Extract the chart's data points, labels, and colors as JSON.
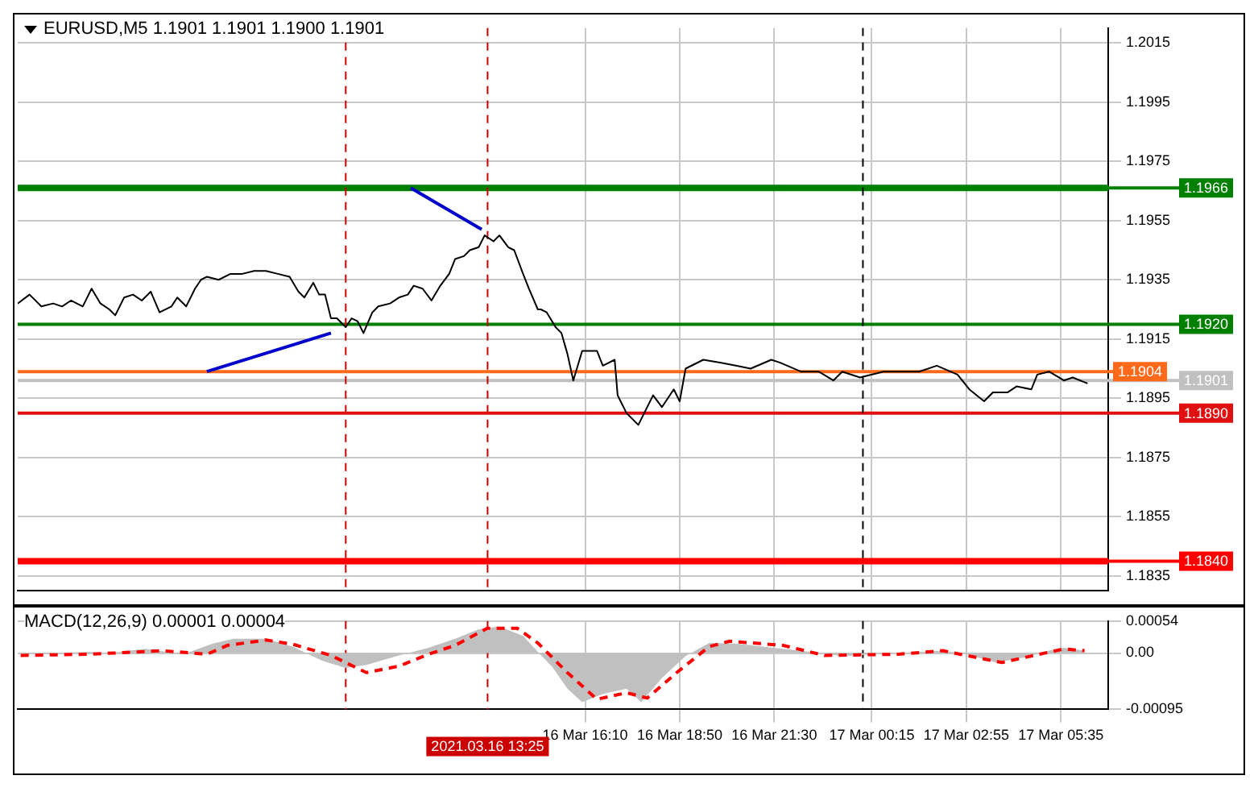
{
  "chart_data": [
    {
      "type": "line",
      "title": "EURUSD,M5  1.1901 1.1901 1.1900 1.1901",
      "xlim": [
        "2021-03-16T00:10",
        "2021-03-17T06:55"
      ],
      "xticks": [
        {
          "value": "2021-03-16T16:10",
          "label": null
        },
        {
          "value": "2021-03-16T18:50",
          "label": null
        },
        {
          "value": "2021-03-16T21:30",
          "label": null
        },
        {
          "value": "2021-03-17T00:15",
          "label": null
        },
        {
          "value": "2021-03-17T02:55",
          "label": null
        },
        {
          "value": "2021-03-17T05:35",
          "label": null
        }
      ],
      "ylim": [
        1.183,
        1.202
      ],
      "yticks": [
        1.1835,
        1.1855,
        1.1875,
        1.1895,
        1.1915,
        1.1935,
        1.1955,
        1.1975,
        1.1995,
        1.2015
      ],
      "tick_labels": "y",
      "grid": true,
      "legend": false,
      "marker": "none",
      "series": [
        {
          "color": "#000000",
          "x": [
            "2021-03-16T00:10",
            "2021-03-16T00:30",
            "2021-03-16T00:50",
            "2021-03-16T01:10",
            "2021-03-16T01:25",
            "2021-03-16T01:40",
            "2021-03-16T02:00",
            "2021-03-16T02:15",
            "2021-03-16T02:30",
            "2021-03-16T02:45",
            "2021-03-16T02:55",
            "2021-03-16T03:10",
            "2021-03-16T03:25",
            "2021-03-16T03:40",
            "2021-03-16T03:55",
            "2021-03-16T04:10",
            "2021-03-16T04:30",
            "2021-03-16T04:40",
            "2021-03-16T04:55",
            "2021-03-16T05:10",
            "2021-03-16T05:20",
            "2021-03-16T05:30",
            "2021-03-16T05:50",
            "2021-03-16T06:10",
            "2021-03-16T06:30",
            "2021-03-16T06:50",
            "2021-03-16T07:10",
            "2021-03-16T07:30",
            "2021-03-16T07:50",
            "2021-03-16T08:05",
            "2021-03-16T08:15",
            "2021-03-16T08:30",
            "2021-03-16T08:40",
            "2021-03-16T08:50",
            "2021-03-16T09:00",
            "2021-03-16T09:10",
            "2021-03-16T09:25",
            "2021-03-16T09:35",
            "2021-03-16T09:45",
            "2021-03-16T09:55",
            "2021-03-16T10:10",
            "2021-03-16T10:20",
            "2021-03-16T10:40",
            "2021-03-16T10:55",
            "2021-03-16T11:10",
            "2021-03-16T11:20",
            "2021-03-16T11:35",
            "2021-03-16T11:50",
            "2021-03-16T12:05",
            "2021-03-16T12:20",
            "2021-03-16T12:30",
            "2021-03-16T12:45",
            "2021-03-16T12:55",
            "2021-03-16T13:10",
            "2021-03-16T13:20",
            "2021-03-16T13:35",
            "2021-03-16T13:45",
            "2021-03-16T14:00",
            "2021-03-16T14:10",
            "2021-03-16T14:25",
            "2021-03-16T14:35",
            "2021-03-16T14:50",
            "2021-03-16T14:55",
            "2021-03-16T15:05",
            "2021-03-16T15:20",
            "2021-03-16T15:30",
            "2021-03-16T15:40",
            "2021-03-16T15:50",
            "2021-03-16T16:05",
            "2021-03-16T16:15",
            "2021-03-16T16:30",
            "2021-03-16T16:40",
            "2021-03-16T17:00",
            "2021-03-16T17:05",
            "2021-03-16T17:20",
            "2021-03-16T17:40",
            "2021-03-16T18:05",
            "2021-03-16T18:20",
            "2021-03-16T18:40",
            "2021-03-16T18:50",
            "2021-03-16T19:00",
            "2021-03-16T19:30",
            "2021-03-16T20:00",
            "2021-03-16T20:25",
            "2021-03-16T20:50",
            "2021-03-16T21:25",
            "2021-03-16T21:40",
            "2021-03-16T22:15",
            "2021-03-16T22:45",
            "2021-03-16T23:10",
            "2021-03-16T23:25",
            "2021-03-16T23:55",
            "2021-03-17T00:35",
            "2021-03-17T01:00",
            "2021-03-17T01:35",
            "2021-03-17T02:05",
            "2021-03-17T02:40",
            "2021-03-17T03:00",
            "2021-03-17T03:25",
            "2021-03-17T03:40",
            "2021-03-17T04:05",
            "2021-03-17T04:20",
            "2021-03-17T04:45",
            "2021-03-17T04:55",
            "2021-03-17T05:15",
            "2021-03-17T05:40",
            "2021-03-17T05:55",
            "2021-03-17T06:20"
          ],
          "values": [
            1.1927,
            1.193,
            1.1926,
            1.1927,
            1.1926,
            1.1928,
            1.1926,
            1.1932,
            1.1927,
            1.1925,
            1.1923,
            1.1929,
            1.193,
            1.1928,
            1.1931,
            1.1924,
            1.1926,
            1.1929,
            1.1926,
            1.1932,
            1.1935,
            1.1936,
            1.1935,
            1.1937,
            1.1937,
            1.1938,
            1.1938,
            1.1937,
            1.1936,
            1.1931,
            1.1929,
            1.1934,
            1.193,
            1.193,
            1.1922,
            1.1922,
            1.1919,
            1.1922,
            1.1921,
            1.1917,
            1.1924,
            1.1926,
            1.1927,
            1.1929,
            1.193,
            1.1933,
            1.1932,
            1.1928,
            1.1933,
            1.1937,
            1.1942,
            1.1943,
            1.1945,
            1.1946,
            1.195,
            1.1948,
            1.195,
            1.1946,
            1.1945,
            1.1937,
            1.1932,
            1.1925,
            1.1925,
            1.1924,
            1.1919,
            1.1917,
            1.191,
            1.1901,
            1.1911,
            1.1911,
            1.1911,
            1.1906,
            1.1908,
            1.1896,
            1.189,
            1.1886,
            1.1896,
            1.1892,
            1.1898,
            1.1894,
            1.1905,
            1.1908,
            1.1907,
            1.1906,
            1.1905,
            1.1908,
            1.1907,
            1.1904,
            1.1904,
            1.1901,
            1.1904,
            1.1902,
            1.1904,
            1.1904,
            1.1904,
            1.1906,
            1.1903,
            1.1898,
            1.1894,
            1.1897,
            1.1897,
            1.1899,
            1.1898,
            1.1903,
            1.1904,
            1.1901,
            1.1902,
            1.19
          ]
        },
        {
          "color": "#0000cc",
          "x": [
            "2021-03-16T05:30",
            "2021-03-16T09:00"
          ],
          "values": [
            1.1904,
            1.1917
          ]
        },
        {
          "color": "#0000cc",
          "x": [
            "2021-03-16T11:15",
            "2021-03-16T13:15"
          ],
          "values": [
            1.1966,
            1.1952
          ]
        }
      ],
      "ref_lines": [
        {
          "axis": "y",
          "value": 1.1966,
          "label": "1.1966",
          "color": "#008000"
        },
        {
          "axis": "y",
          "value": 1.192,
          "label": "1.1920",
          "color": "#008000"
        },
        {
          "axis": "y",
          "value": 1.1904,
          "label": "1.1904",
          "color": "#ff6a1a"
        },
        {
          "axis": "y",
          "value": 1.1901,
          "label": "1.1901",
          "color": "#c0c0c0"
        },
        {
          "axis": "y",
          "value": 1.189,
          "label": "1.1890",
          "color": "#e01010"
        },
        {
          "axis": "y",
          "value": 1.184,
          "label": "1.1840",
          "color": "#ff0000"
        },
        {
          "axis": "x",
          "value": "2021-03-16T09:25",
          "color": "#cc0000",
          "line_style": "dashed"
        },
        {
          "axis": "x",
          "value": "2021-03-16T13:25",
          "color": "#cc0000",
          "line_style": "dashed"
        },
        {
          "axis": "x",
          "value": "2021-03-17T00:00",
          "color": "#000000",
          "line_style": "dashed"
        }
      ]
    },
    {
      "type": "area",
      "title": "MACD(12,26,9) 0.00001 0.00004",
      "xlim": [
        "2021-03-16T00:10",
        "2021-03-17T06:55"
      ],
      "xticks": [
        {
          "value": "2021-03-16T16:10",
          "label": "16 Mar 16:10"
        },
        {
          "value": "2021-03-16T18:50",
          "label": "16 Mar 18:50"
        },
        {
          "value": "2021-03-16T21:30",
          "label": "16 Mar 21:30"
        },
        {
          "value": "2021-03-17T00:15",
          "label": "17 Mar 00:15"
        },
        {
          "value": "2021-03-17T02:55",
          "label": "17 Mar 02:55"
        },
        {
          "value": "2021-03-17T05:35",
          "label": "17 Mar 05:35"
        }
      ],
      "ylim": [
        -0.00095,
        0.00054
      ],
      "yticks": [
        -0.00095,
        {
          "value": 0,
          "label": "0.00"
        },
        0.00054
      ],
      "grid": true,
      "legend": false,
      "marker": "none",
      "series": [
        {
          "color": "#c0c0c0",
          "x": [
            "2021-03-16T00:15",
            "2021-03-16T02:10",
            "2021-03-16T02:45",
            "2021-03-16T03:45",
            "2021-03-16T04:50",
            "2021-03-16T05:40",
            "2021-03-16T06:15",
            "2021-03-16T07:10",
            "2021-03-16T07:55",
            "2021-03-16T08:45",
            "2021-03-16T09:25",
            "2021-03-16T10:00",
            "2021-03-16T10:55",
            "2021-03-16T11:45",
            "2021-03-16T12:30",
            "2021-03-16T13:10",
            "2021-03-16T13:45",
            "2021-03-16T14:25",
            "2021-03-16T14:50",
            "2021-03-16T15:15",
            "2021-03-16T15:40",
            "2021-03-16T16:05",
            "2021-03-16T16:40",
            "2021-03-16T17:20",
            "2021-03-16T17:45",
            "2021-03-16T18:20",
            "2021-03-16T19:00",
            "2021-03-16T19:40",
            "2021-03-16T20:25",
            "2021-03-16T21:45",
            "2021-03-16T22:30",
            "2021-03-16T23:25",
            "2021-03-17T01:00",
            "2021-03-17T02:15",
            "2021-03-17T02:55",
            "2021-03-17T03:45",
            "2021-03-17T04:35",
            "2021-03-17T05:15",
            "2021-03-17T05:40",
            "2021-03-17T06:15"
          ],
          "values": [
            -2e-05,
            2e-05,
            0,
            7e-05,
            -2e-05,
            0.00016,
            0.00024,
            0.00024,
            0.00011,
            -0.00013,
            -0.00025,
            -0.0002,
            -4e-05,
            9e-05,
            0.00024,
            0.0004,
            0.00045,
            0.00029,
            2e-05,
            -0.00024,
            -0.0006,
            -0.00083,
            -0.00069,
            -0.0006,
            -0.00083,
            -0.00042,
            -5e-05,
            0.00017,
            0.00016,
            7e-05,
            2e-05,
            -5e-05,
            0,
            4e-05,
            -2e-05,
            -0.00016,
            -7e-05,
            4e-05,
            9e-05,
            4e-05
          ]
        },
        {
          "type": "line",
          "color": "#ff0000",
          "line_style": "dashed",
          "x": [
            "2021-03-16T00:15",
            "2021-03-16T02:10",
            "2021-03-16T04:15",
            "2021-03-16T05:30",
            "2021-03-16T06:05",
            "2021-03-16T07:10",
            "2021-03-16T07:55",
            "2021-03-16T09:00",
            "2021-03-16T10:00",
            "2021-03-16T10:55",
            "2021-03-16T11:45",
            "2021-03-16T12:30",
            "2021-03-16T13:25",
            "2021-03-16T14:15",
            "2021-03-16T14:50",
            "2021-03-16T15:40",
            "2021-03-16T16:30",
            "2021-03-16T17:20",
            "2021-03-16T17:55",
            "2021-03-16T18:45",
            "2021-03-16T19:40",
            "2021-03-16T20:15",
            "2021-03-16T21:45",
            "2021-03-16T22:55",
            "2021-03-17T01:00",
            "2021-03-17T02:15",
            "2021-03-17T03:55",
            "2021-03-17T05:40",
            "2021-03-17T06:15"
          ],
          "values": [
            -4e-05,
            -2e-05,
            4e-05,
            -2e-05,
            0.00013,
            0.00022,
            0.00015,
            -4e-05,
            -0.00033,
            -0.00022,
            -2e-05,
            0.00013,
            0.00042,
            0.00042,
            0.00017,
            -0.00033,
            -0.00078,
            -0.00067,
            -0.00076,
            -0.00033,
            0.00011,
            0.0002,
            0.00013,
            -4e-05,
            -2e-05,
            4e-05,
            -0.00016,
            7e-05,
            4e-05
          ]
        }
      ],
      "ref_lines": [
        {
          "axis": "x",
          "value": "2021-03-16T09:25",
          "color": "#cc0000",
          "line_style": "dashed"
        },
        {
          "axis": "x",
          "value": "2021-03-16T13:25",
          "label": "2021.03.16 13:25",
          "color": "#cc0000",
          "line_style": "dashed"
        },
        {
          "axis": "x",
          "value": "2021-03-17T00:00",
          "color": "#000000",
          "line_style": "dashed"
        }
      ]
    }
  ]
}
